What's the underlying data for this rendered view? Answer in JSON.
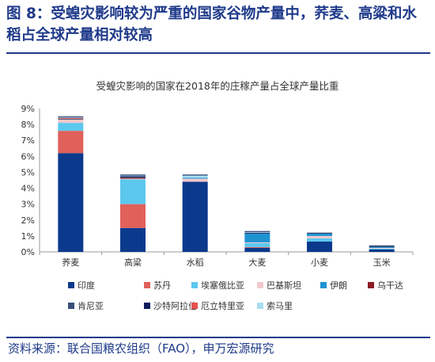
{
  "figure": {
    "title": "图 8：受蝗灾影响较为严重的国家谷物产量中，荞麦、高粱和水稻占全球产量相对较高",
    "source": "资料来源：联合国粮农组织（FAO），申万宏源研究"
  },
  "chart_data": {
    "type": "bar",
    "stacked": true,
    "title": "受蝗灾影响的国家在2018年的庄稼产量占全球产量比重",
    "xlabel": "",
    "ylabel": "",
    "ylim": [
      0,
      9
    ],
    "yticks": [
      "0%",
      "1%",
      "2%",
      "3%",
      "4%",
      "5%",
      "6%",
      "7%",
      "8%",
      "9%"
    ],
    "grid": false,
    "legend_position": "bottom",
    "categories": [
      "荞麦",
      "高粱",
      "水稻",
      "大麦",
      "小麦",
      "玉米"
    ],
    "series": [
      {
        "name": "印度",
        "color": "#0b3a8c",
        "values": [
          6.2,
          1.5,
          4.4,
          0.25,
          0.65,
          0.15
        ]
      },
      {
        "name": "苏丹",
        "color": "#e0605a",
        "values": [
          1.4,
          1.5,
          0,
          0.05,
          0,
          0
        ]
      },
      {
        "name": "埃塞俄比亚",
        "color": "#5cc8ee",
        "values": [
          0.5,
          1.55,
          0,
          0.25,
          0.2,
          0.05
        ]
      },
      {
        "name": "巴基斯坦",
        "color": "#f2c9cc",
        "values": [
          0.2,
          0.05,
          0.2,
          0.05,
          0.15,
          0.05
        ]
      },
      {
        "name": "伊朗",
        "color": "#1d93d1",
        "values": [
          0,
          0,
          0.05,
          0.55,
          0.15,
          0.05
        ]
      },
      {
        "name": "乌干达",
        "color": "#8e1a24",
        "values": [
          0,
          0.05,
          0,
          0,
          0,
          0
        ]
      },
      {
        "name": "肯尼亚",
        "color": "#3a4f7a",
        "values": [
          0.05,
          0.05,
          0,
          0,
          0,
          0.05
        ]
      },
      {
        "name": "沙特阿拉伯",
        "color": "#101b5e",
        "values": [
          0,
          0.05,
          0,
          0.05,
          0,
          0
        ]
      },
      {
        "name": "厄立特里亚",
        "color": "#e8514f",
        "values": [
          0.05,
          0,
          0,
          0,
          0,
          0
        ]
      },
      {
        "name": "索马里",
        "color": "#a9def2",
        "values": [
          0.05,
          0.05,
          0.15,
          0.05,
          0,
          0
        ]
      }
    ]
  }
}
